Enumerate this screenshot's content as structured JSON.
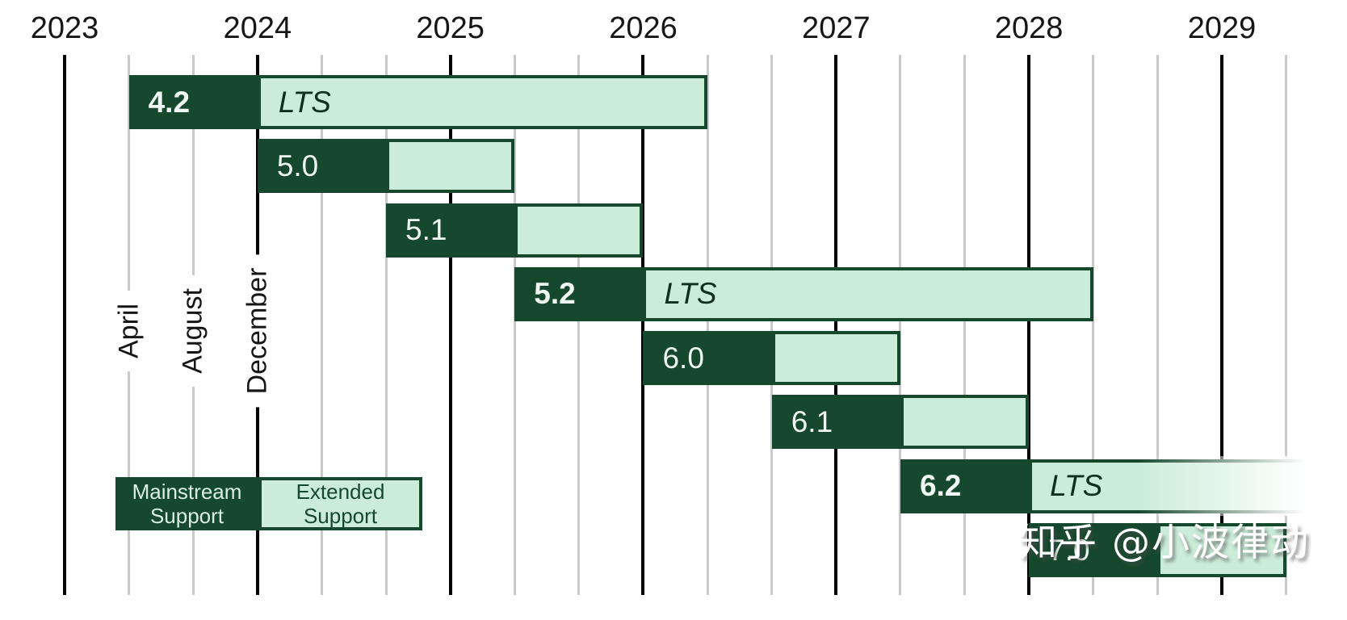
{
  "colors": {
    "mainstream_dark_green": "#16482d",
    "extended_light_green": "#cbecd8",
    "grid_gray": "#c9c9c9",
    "grid_black": "#000000"
  },
  "legend": {
    "mainstream_label": "Mainstream Support",
    "extended_label": "Extended Support"
  },
  "watermark": "知乎 @小波律动",
  "chart_data": {
    "type": "gantt",
    "title": "",
    "time_axis": {
      "unit": "thirds of a year (t = number of 4-month steps after the 2023 line; releases occur April / August / December)",
      "years": [
        {
          "label": "2023",
          "t": 0
        },
        {
          "label": "2024",
          "t": 3
        },
        {
          "label": "2025",
          "t": 6
        },
        {
          "label": "2026",
          "t": 9
        },
        {
          "label": "2027",
          "t": 12
        },
        {
          "label": "2028",
          "t": 15
        },
        {
          "label": "2029",
          "t": 18
        }
      ],
      "month_ticks": [
        {
          "label": "April",
          "t": 1
        },
        {
          "label": "August",
          "t": 2
        },
        {
          "label": "December",
          "t": 3
        }
      ],
      "gridlines_every_t": 1,
      "black_line_every_t": 3
    },
    "lts_text": "LTS",
    "releases": [
      {
        "version": "4.2",
        "lts": true,
        "released": "Apr 2023",
        "mainstream_until": "Dec 2023",
        "extended_until": "Apr 2026",
        "fade_out": false,
        "t_start": 1,
        "t_mid": 3,
        "t_end": 10
      },
      {
        "version": "5.0",
        "lts": false,
        "released": "Dec 2023",
        "mainstream_until": "Aug 2024",
        "extended_until": "Apr 2025",
        "fade_out": false,
        "t_start": 3,
        "t_mid": 5,
        "t_end": 7
      },
      {
        "version": "5.1",
        "lts": false,
        "released": "Aug 2024",
        "mainstream_until": "Apr 2025",
        "extended_until": "Dec 2025",
        "fade_out": false,
        "t_start": 5,
        "t_mid": 7,
        "t_end": 9
      },
      {
        "version": "5.2",
        "lts": true,
        "released": "Apr 2025",
        "mainstream_until": "Dec 2025",
        "extended_until": "Apr 2028",
        "fade_out": false,
        "t_start": 7,
        "t_mid": 9,
        "t_end": 16
      },
      {
        "version": "6.0",
        "lts": false,
        "released": "Dec 2025",
        "mainstream_until": "Aug 2026",
        "extended_until": "Apr 2027",
        "fade_out": false,
        "t_start": 9,
        "t_mid": 11,
        "t_end": 13
      },
      {
        "version": "6.1",
        "lts": false,
        "released": "Aug 2026",
        "mainstream_until": "Apr 2027",
        "extended_until": "Dec 2027",
        "fade_out": false,
        "t_start": 11,
        "t_mid": 13,
        "t_end": 15
      },
      {
        "version": "6.2",
        "lts": true,
        "released": "Apr 2027",
        "mainstream_until": "Dec 2027",
        "extended_until": "",
        "fade_out": true,
        "t_start": 13,
        "t_mid": 15,
        "t_end": 22
      },
      {
        "version": "7.0",
        "lts": false,
        "released": "Dec 2027",
        "mainstream_until": "Aug 2028",
        "extended_until": "Apr 2029",
        "fade_out": false,
        "t_start": 15,
        "t_mid": 17,
        "t_end": 19
      }
    ]
  }
}
